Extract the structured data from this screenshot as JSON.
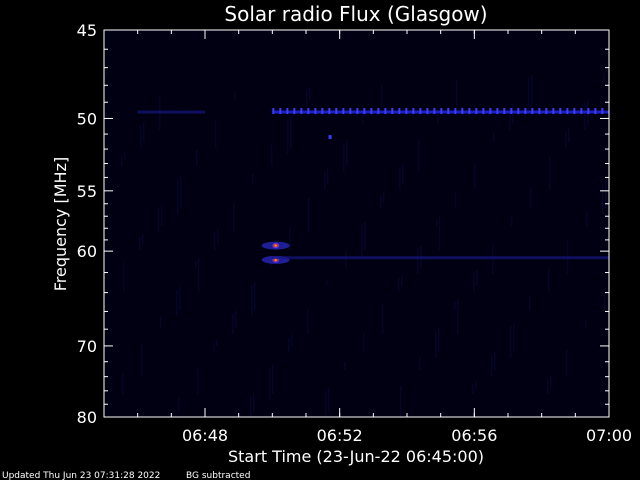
{
  "chart_data": {
    "type": "heatmap",
    "title": "Solar radio Flux (Glasgow)",
    "xlabel": "Start Time (23-Jun-22 06:45:00)",
    "ylabel": "Frequency [MHz]",
    "x_range": [
      "06:45",
      "07:00"
    ],
    "xlim_minutes_after_0645": [
      0,
      15
    ],
    "ylim_mhz": [
      45,
      80
    ],
    "y_scale": "reciprocal",
    "x_ticks": [
      "06:48",
      "06:52",
      "06:56",
      "07:00"
    ],
    "y_ticks": [
      "45",
      "50",
      "55",
      "60",
      "70",
      "80"
    ],
    "grid": false,
    "colormap": "black-blue-red-yellow",
    "features": [
      {
        "type": "burst",
        "time": "06:50:06",
        "freq_mhz": 59.5,
        "intensity": "high"
      },
      {
        "type": "burst",
        "time": "06:50:06",
        "freq_mhz": 60.8,
        "intensity": "high"
      },
      {
        "type": "band",
        "time_start": "06:50:00",
        "time_end": "07:00:00",
        "freq_mhz": 49.6,
        "intensity": "medium"
      },
      {
        "type": "band",
        "time_start": "06:46:00",
        "time_end": "06:48:00",
        "freq_mhz": 49.6,
        "intensity": "low"
      },
      {
        "type": "band",
        "time_start": "06:50:00",
        "time_end": "07:00:00",
        "freq_mhz": 60.6,
        "intensity": "low"
      },
      {
        "type": "dot",
        "time": "06:51:42",
        "freq_mhz": 51.2,
        "intensity": "medium"
      }
    ]
  },
  "footer": {
    "updated": "Updated Thu Jun 23 07:31:28 2022",
    "note": "BG subtracted"
  }
}
